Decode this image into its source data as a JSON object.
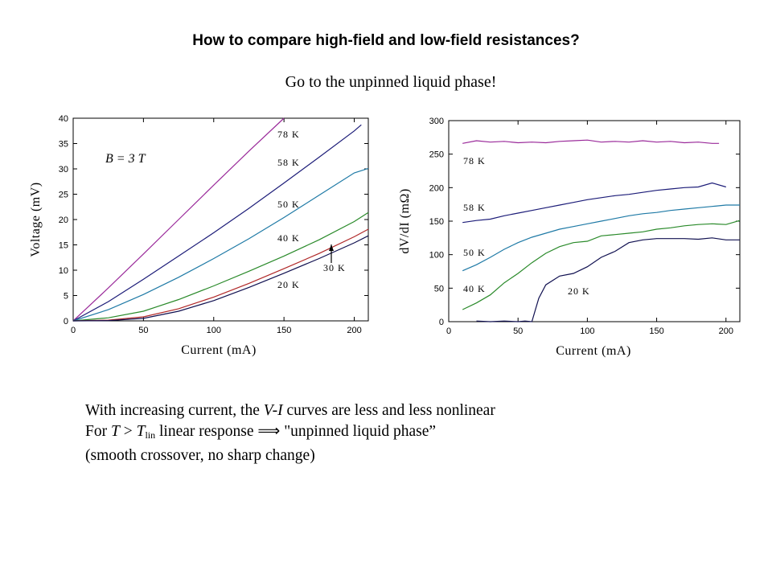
{
  "slide": {
    "title": "How to compare high-field and low-field resistances?",
    "subtitle": "Go to the unpinned liquid phase!",
    "text": {
      "line1_a": "With increasing current, the ",
      "line1_vi": "V-I",
      "line1_b": " curves are less and less nonlinear",
      "line2_a": "For ",
      "line2_T": "T",
      "line2_gt": " > ",
      "line2_T2": "T",
      "line2_sub": "lin",
      "line2_b": "  linear response  ",
      "line2_arrow": "⟹",
      "line2_c": "  \"unpinned liquid phase”",
      "line3": "(smooth crossover, no sharp change)"
    }
  },
  "chart_data": [
    {
      "type": "line",
      "title": "",
      "xlabel": "Current (mA)",
      "ylabel": "Voltage (mV)",
      "xlim": [
        0,
        210
      ],
      "ylim": [
        0,
        40
      ],
      "xticks": [
        0,
        50,
        100,
        150,
        200
      ],
      "yticks": [
        0,
        5,
        10,
        15,
        20,
        25,
        30,
        35,
        40
      ],
      "annotation": "B = 3 T",
      "grid": false,
      "series": [
        {
          "name": "78 K",
          "color": "#9a2a9a",
          "x": [
            0,
            25,
            50,
            75,
            100,
            125,
            150
          ],
          "y": [
            0,
            6.5,
            13.2,
            20,
            26.8,
            33.5,
            40
          ]
        },
        {
          "name": "58 K",
          "color": "#1c1c78",
          "x": [
            0,
            25,
            50,
            75,
            100,
            125,
            150,
            175,
            200,
            205
          ],
          "y": [
            0,
            3.8,
            8.2,
            12.8,
            17.4,
            22.2,
            27.2,
            32.3,
            37.5,
            38.7
          ]
        },
        {
          "name": "50 K",
          "color": "#1f7aa6",
          "x": [
            0,
            25,
            50,
            75,
            100,
            125,
            150,
            175,
            200,
            210
          ],
          "y": [
            0,
            2.2,
            5.2,
            8.6,
            12.3,
            16.2,
            20.4,
            24.8,
            29.2,
            30.1
          ]
        },
        {
          "name": "40 K",
          "color": "#2a8a2a",
          "x": [
            0,
            25,
            50,
            75,
            100,
            125,
            150,
            175,
            200,
            210
          ],
          "y": [
            0,
            0.6,
            1.9,
            4.2,
            6.9,
            9.8,
            12.8,
            16.0,
            19.6,
            21.4
          ]
        },
        {
          "name": "30 K",
          "color": "#b02828",
          "x": [
            0,
            25,
            50,
            75,
            100,
            125,
            150,
            175,
            200,
            210
          ],
          "y": [
            0,
            0.15,
            0.8,
            2.4,
            4.7,
            7.4,
            10.3,
            13.3,
            16.6,
            18.1
          ]
        },
        {
          "name": "20 K",
          "color": "#101050",
          "x": [
            0,
            25,
            50,
            75,
            100,
            125,
            150,
            175,
            200,
            210
          ],
          "y": [
            0,
            0.05,
            0.5,
            1.9,
            4.0,
            6.6,
            9.4,
            12.3,
            15.4,
            16.8
          ]
        }
      ]
    },
    {
      "type": "line",
      "title": "",
      "xlabel": "Current (mA)",
      "ylabel": "dV/dI (mΩ)",
      "xlim": [
        0,
        210
      ],
      "ylim": [
        0,
        300
      ],
      "xticks": [
        0,
        50,
        100,
        150,
        200
      ],
      "yticks": [
        0,
        50,
        100,
        150,
        200,
        250,
        300
      ],
      "grid": false,
      "series": [
        {
          "name": "78 K",
          "color": "#9a2a9a",
          "x": [
            10,
            20,
            30,
            40,
            50,
            60,
            70,
            80,
            90,
            100,
            110,
            120,
            130,
            140,
            150,
            160,
            170,
            180,
            190,
            195
          ],
          "y": [
            266,
            270,
            268,
            269,
            267,
            268,
            267,
            269,
            270,
            271,
            268,
            269,
            268,
            270,
            268,
            269,
            267,
            268,
            266,
            266
          ]
        },
        {
          "name": "58 K",
          "color": "#1c1c78",
          "x": [
            10,
            20,
            30,
            40,
            50,
            60,
            70,
            80,
            90,
            100,
            110,
            120,
            130,
            140,
            150,
            160,
            170,
            180,
            190,
            200
          ],
          "y": [
            148,
            151,
            153,
            158,
            162,
            166,
            170,
            174,
            178,
            182,
            185,
            188,
            190,
            193,
            196,
            198,
            200,
            201,
            207,
            201
          ]
        },
        {
          "name": "50 K",
          "color": "#1f7aa6",
          "x": [
            10,
            20,
            30,
            40,
            50,
            60,
            70,
            80,
            90,
            100,
            110,
            120,
            130,
            140,
            150,
            160,
            170,
            180,
            190,
            200,
            210
          ],
          "y": [
            76,
            85,
            96,
            108,
            118,
            126,
            132,
            138,
            142,
            146,
            150,
            154,
            158,
            161,
            163,
            166,
            168,
            170,
            172,
            174,
            174
          ]
        },
        {
          "name": "40 K",
          "color": "#2a8a2a",
          "x": [
            10,
            20,
            30,
            40,
            50,
            60,
            70,
            80,
            90,
            100,
            110,
            120,
            130,
            140,
            150,
            160,
            170,
            180,
            190,
            200,
            210
          ],
          "y": [
            18,
            28,
            40,
            58,
            72,
            88,
            102,
            112,
            118,
            120,
            128,
            130,
            132,
            134,
            138,
            140,
            143,
            145,
            146,
            145,
            151
          ]
        },
        {
          "name": "20 K",
          "color": "#101050",
          "x": [
            20,
            30,
            40,
            50,
            55,
            60,
            65,
            70,
            80,
            90,
            100,
            110,
            120,
            130,
            140,
            150,
            160,
            170,
            180,
            190,
            200,
            210
          ],
          "y": [
            1,
            0,
            1,
            0,
            1,
            0,
            35,
            55,
            68,
            72,
            82,
            96,
            105,
            118,
            122,
            124,
            124,
            124,
            123,
            125,
            122,
            122
          ]
        }
      ]
    }
  ]
}
